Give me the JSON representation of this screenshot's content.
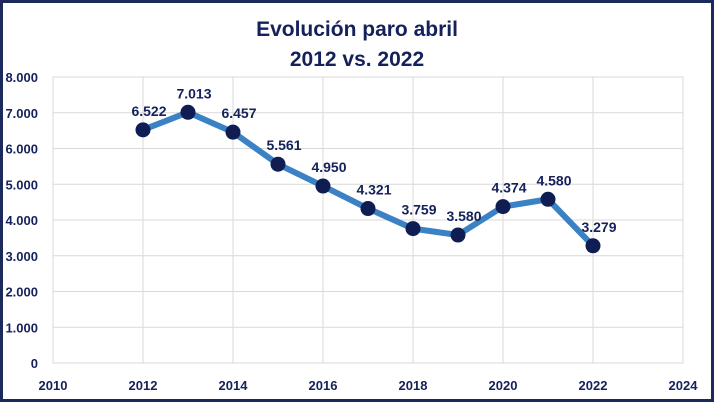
{
  "chart_data": {
    "type": "line",
    "title": "Evolución paro abril",
    "subtitle": "2012 vs. 2022",
    "xlabel": "",
    "ylabel": "",
    "x": [
      2012,
      2013,
      2014,
      2015,
      2016,
      2017,
      2018,
      2019,
      2020,
      2021,
      2022
    ],
    "values": [
      6522,
      7013,
      6457,
      5561,
      4950,
      4321,
      3759,
      3580,
      4374,
      4580,
      3279
    ],
    "data_labels": [
      "6.522",
      "7.013",
      "6.457",
      "5.561",
      "4.950",
      "4.321",
      "3.759",
      "3.580",
      "4.374",
      "4.580",
      "3.279"
    ],
    "xlim": [
      2010,
      2024
    ],
    "ylim": [
      0,
      8000
    ],
    "x_ticks": [
      "2010",
      "2012",
      "2014",
      "2016",
      "2018",
      "2020",
      "2022",
      "2024"
    ],
    "y_ticks": [
      "0",
      "1.000",
      "2.000",
      "3.000",
      "4.000",
      "5.000",
      "6.000",
      "7.000",
      "8.000"
    ],
    "grid": true,
    "legend": "none",
    "colors": {
      "line": "#3b82c4",
      "marker": "#0f1d52",
      "text": "#14215a",
      "grid": "#d9d9d9",
      "frame": "#1b2a5a"
    }
  }
}
